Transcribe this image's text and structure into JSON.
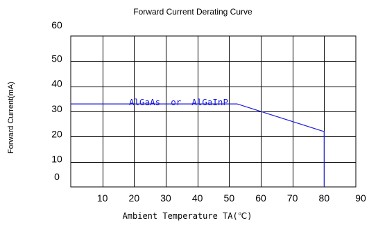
{
  "chart_data": {
    "type": "line",
    "title": "Forward Current Derating Curve",
    "xlabel": "Ambient Temperature TA(℃)",
    "ylabel": "Forward Current(mA)",
    "xlim": [
      0,
      90
    ],
    "ylim": [
      0,
      60
    ],
    "x_ticks": [
      "10",
      "20",
      "30",
      "40",
      "50",
      "60",
      "70",
      "80",
      "90"
    ],
    "y_ticks": [
      "60",
      "50",
      "40",
      "30",
      "20",
      "10",
      "0"
    ],
    "grid": true,
    "annotation": "AlGaAs  or  AlGaInP",
    "series": [
      {
        "color": "#1a1adc",
        "x": [
          0,
          52.5,
          80,
          80
        ],
        "y": [
          33,
          33,
          22,
          0
        ]
      }
    ]
  }
}
